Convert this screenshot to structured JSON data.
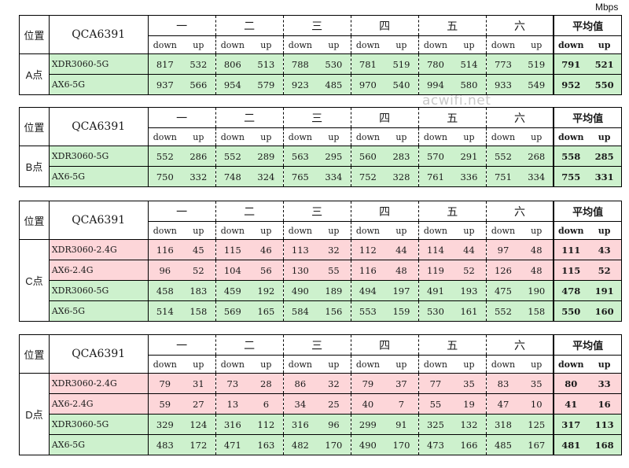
{
  "unit": "Mbps",
  "watermark": "acwifi.net",
  "header": {
    "pos_label": "位置",
    "chip_label": "QCA6391",
    "days": [
      "一",
      "二",
      "三",
      "四",
      "五",
      "六"
    ],
    "avg_label": "平均值",
    "down": "down",
    "up": "up"
  },
  "tables": [
    {
      "location": "A点",
      "rows": [
        {
          "device": "XDR3060-5G",
          "color": "green",
          "vals": [
            "817",
            "532",
            "806",
            "513",
            "788",
            "530",
            "781",
            "519",
            "780",
            "514",
            "773",
            "519"
          ],
          "avg_down": "791",
          "avg_up": "521"
        },
        {
          "device": "AX6-5G",
          "color": "green",
          "vals": [
            "937",
            "566",
            "954",
            "579",
            "923",
            "485",
            "970",
            "540",
            "994",
            "580",
            "933",
            "549"
          ],
          "avg_down": "952",
          "avg_up": "550"
        }
      ]
    },
    {
      "location": "B点",
      "rows": [
        {
          "device": "XDR3060-5G",
          "color": "green",
          "vals": [
            "552",
            "286",
            "552",
            "289",
            "563",
            "295",
            "560",
            "283",
            "570",
            "291",
            "552",
            "268"
          ],
          "avg_down": "558",
          "avg_up": "285"
        },
        {
          "device": "AX6-5G",
          "color": "green",
          "vals": [
            "750",
            "332",
            "748",
            "324",
            "765",
            "334",
            "752",
            "328",
            "761",
            "336",
            "751",
            "334"
          ],
          "avg_down": "755",
          "avg_up": "331"
        }
      ]
    },
    {
      "location": "C点",
      "rows": [
        {
          "device": "XDR3060-2.4G",
          "color": "red",
          "vals": [
            "116",
            "45",
            "115",
            "46",
            "113",
            "32",
            "112",
            "44",
            "114",
            "44",
            "97",
            "48"
          ],
          "avg_down": "111",
          "avg_up": "43"
        },
        {
          "device": "AX6-2.4G",
          "color": "red",
          "vals": [
            "96",
            "52",
            "104",
            "56",
            "130",
            "55",
            "116",
            "48",
            "119",
            "52",
            "126",
            "48"
          ],
          "avg_down": "115",
          "avg_up": "52"
        },
        {
          "device": "XDR3060-5G",
          "color": "green",
          "vals": [
            "458",
            "183",
            "459",
            "192",
            "490",
            "189",
            "494",
            "197",
            "491",
            "193",
            "475",
            "190"
          ],
          "avg_down": "478",
          "avg_up": "191"
        },
        {
          "device": "AX6-5G",
          "color": "green",
          "vals": [
            "514",
            "158",
            "569",
            "165",
            "584",
            "156",
            "553",
            "159",
            "530",
            "161",
            "552",
            "158"
          ],
          "avg_down": "550",
          "avg_up": "160"
        }
      ]
    },
    {
      "location": "D点",
      "rows": [
        {
          "device": "XDR3060-2.4G",
          "color": "red",
          "vals": [
            "79",
            "31",
            "73",
            "28",
            "86",
            "32",
            "79",
            "37",
            "77",
            "35",
            "83",
            "35"
          ],
          "avg_down": "80",
          "avg_up": "33"
        },
        {
          "device": "AX6-2.4G",
          "color": "red",
          "vals": [
            "59",
            "27",
            "13",
            "6",
            "34",
            "25",
            "40",
            "7",
            "55",
            "19",
            "47",
            "10"
          ],
          "avg_down": "41",
          "avg_up": "16"
        },
        {
          "device": "XDR3060-5G",
          "color": "green",
          "vals": [
            "329",
            "124",
            "316",
            "112",
            "316",
            "96",
            "299",
            "91",
            "325",
            "132",
            "318",
            "125"
          ],
          "avg_down": "317",
          "avg_up": "113"
        },
        {
          "device": "AX6-5G",
          "color": "green",
          "vals": [
            "483",
            "172",
            "471",
            "163",
            "482",
            "170",
            "490",
            "170",
            "473",
            "166",
            "485",
            "167"
          ],
          "avg_down": "481",
          "avg_up": "168"
        }
      ]
    }
  ]
}
